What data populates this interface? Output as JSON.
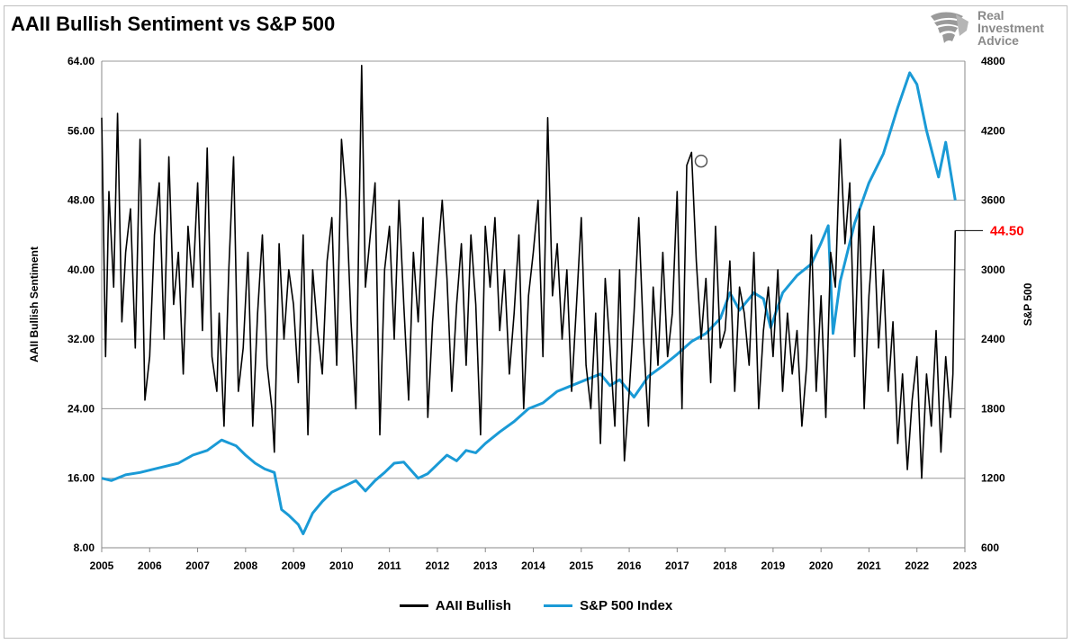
{
  "brand": {
    "lines": [
      "Real",
      "Investment",
      "Advice"
    ],
    "icon": "lion-head-logo"
  },
  "colors": {
    "bullish": "#000000",
    "sp500": "#1a9ad6",
    "callout": "#ff0000",
    "grid": "#999999"
  },
  "chart_data": {
    "type": "line",
    "title": "AAII Bullish Sentiment vs S&P 500",
    "ylabel": "AAII Bullish Sentiment",
    "y2label": "S&P 500",
    "xlim": [
      2005,
      2023
    ],
    "ylim": [
      8,
      64
    ],
    "y2lim": [
      600,
      4800
    ],
    "x_ticks": [
      "2005",
      "2006",
      "2007",
      "2008",
      "2009",
      "2010",
      "2011",
      "2012",
      "2013",
      "2014",
      "2015",
      "2016",
      "2017",
      "2018",
      "2019",
      "2020",
      "2021",
      "2022",
      "2023"
    ],
    "y_ticks": [
      "8.00",
      "16.00",
      "24.00",
      "32.00",
      "40.00",
      "48.00",
      "56.00",
      "64.00"
    ],
    "y2_ticks": [
      "600",
      "1200",
      "1800",
      "2400",
      "3000",
      "3600",
      "4200",
      "4800"
    ],
    "grid": "horizontal",
    "legend_position": "bottom-center",
    "series": [
      {
        "name": "AAII Bullish",
        "axis": "left",
        "x": [
          2005.0,
          2005.08,
          2005.15,
          2005.25,
          2005.33,
          2005.42,
          2005.5,
          2005.6,
          2005.7,
          2005.8,
          2005.9,
          2006.0,
          2006.1,
          2006.2,
          2006.3,
          2006.4,
          2006.5,
          2006.6,
          2006.7,
          2006.8,
          2006.9,
          2007.0,
          2007.1,
          2007.2,
          2007.3,
          2007.4,
          2007.45,
          2007.55,
          2007.65,
          2007.75,
          2007.85,
          2007.95,
          2008.05,
          2008.15,
          2008.25,
          2008.35,
          2008.45,
          2008.55,
          2008.6,
          2008.7,
          2008.8,
          2008.9,
          2009.0,
          2009.1,
          2009.2,
          2009.3,
          2009.4,
          2009.5,
          2009.6,
          2009.7,
          2009.8,
          2009.9,
          2010.0,
          2010.1,
          2010.2,
          2010.3,
          2010.42,
          2010.5,
          2010.6,
          2010.7,
          2010.8,
          2010.9,
          2011.0,
          2011.1,
          2011.2,
          2011.3,
          2011.4,
          2011.5,
          2011.6,
          2011.7,
          2011.8,
          2011.9,
          2012.0,
          2012.1,
          2012.2,
          2012.3,
          2012.4,
          2012.5,
          2012.6,
          2012.7,
          2012.8,
          2012.9,
          2013.0,
          2013.1,
          2013.2,
          2013.3,
          2013.4,
          2013.5,
          2013.6,
          2013.7,
          2013.8,
          2013.9,
          2014.0,
          2014.1,
          2014.2,
          2014.3,
          2014.4,
          2014.5,
          2014.6,
          2014.7,
          2014.8,
          2014.9,
          2015.0,
          2015.1,
          2015.2,
          2015.3,
          2015.4,
          2015.5,
          2015.6,
          2015.7,
          2015.8,
          2015.9,
          2016.0,
          2016.1,
          2016.2,
          2016.3,
          2016.4,
          2016.5,
          2016.6,
          2016.7,
          2016.8,
          2016.9,
          2017.0,
          2017.1,
          2017.2,
          2017.3,
          2017.4,
          2017.5,
          2017.6,
          2017.7,
          2017.8,
          2017.9,
          2018.0,
          2018.1,
          2018.2,
          2018.3,
          2018.4,
          2018.5,
          2018.6,
          2018.7,
          2018.8,
          2018.9,
          2019.0,
          2019.1,
          2019.2,
          2019.3,
          2019.4,
          2019.5,
          2019.6,
          2019.7,
          2019.8,
          2019.9,
          2020.0,
          2020.1,
          2020.2,
          2020.3,
          2020.4,
          2020.5,
          2020.6,
          2020.7,
          2020.8,
          2020.9,
          2021.0,
          2021.1,
          2021.2,
          2021.3,
          2021.4,
          2021.5,
          2021.6,
          2021.7,
          2021.8,
          2021.9,
          2022.0,
          2022.1,
          2022.2,
          2022.3,
          2022.4,
          2022.5,
          2022.6,
          2022.7,
          2022.75,
          2022.8
        ],
        "values": [
          57.5,
          30,
          49,
          38,
          58,
          34,
          42,
          47,
          31,
          55,
          25,
          30,
          44,
          50,
          32,
          53,
          36,
          42,
          28,
          45,
          38,
          50,
          33,
          54,
          30,
          26,
          35,
          22,
          40,
          53,
          26,
          31,
          42,
          22,
          35,
          44,
          29,
          24,
          19,
          43,
          32,
          40,
          36,
          27,
          44,
          21,
          40,
          33,
          28,
          41,
          46,
          29,
          55,
          48,
          34,
          24,
          63.5,
          38,
          44,
          50,
          21,
          40,
          45,
          32,
          48,
          36,
          25,
          42,
          34,
          46,
          23,
          34,
          41,
          48,
          39,
          26,
          36,
          43,
          29,
          44,
          36,
          21,
          45,
          38,
          46,
          33,
          40,
          28,
          35,
          44,
          24,
          37,
          42,
          48,
          30,
          57.5,
          37,
          43,
          32,
          40,
          26,
          36,
          46,
          29,
          24,
          35,
          20,
          39,
          31,
          22,
          40,
          18,
          26,
          35,
          46,
          32,
          22,
          38,
          29,
          42,
          30,
          35,
          49,
          24,
          52,
          53.5,
          41,
          32,
          39,
          27,
          45,
          31,
          33,
          41,
          26,
          38,
          35,
          29,
          42,
          24,
          33,
          38,
          30,
          40,
          26,
          35,
          28,
          33,
          22,
          29,
          44,
          26,
          37,
          23,
          42,
          38,
          55,
          43,
          50,
          30,
          47,
          24,
          37,
          45,
          31,
          40,
          26,
          34,
          20,
          28,
          17,
          25,
          30,
          16,
          28,
          22,
          33,
          19,
          30,
          23,
          28,
          44.5
        ]
      },
      {
        "name": "S&P 500 Index",
        "axis": "right",
        "x": [
          2005.0,
          2005.2,
          2005.5,
          2005.8,
          2006.0,
          2006.3,
          2006.6,
          2006.9,
          2007.2,
          2007.5,
          2007.8,
          2008.0,
          2008.2,
          2008.4,
          2008.6,
          2008.75,
          2008.9,
          2009.1,
          2009.2,
          2009.4,
          2009.6,
          2009.8,
          2010.0,
          2010.3,
          2010.5,
          2010.7,
          2010.9,
          2011.1,
          2011.3,
          2011.6,
          2011.8,
          2012.0,
          2012.2,
          2012.4,
          2012.6,
          2012.8,
          2013.0,
          2013.3,
          2013.6,
          2013.9,
          2014.2,
          2014.5,
          2014.8,
          2015.1,
          2015.4,
          2015.6,
          2015.8,
          2016.1,
          2016.4,
          2016.7,
          2017.0,
          2017.3,
          2017.6,
          2017.9,
          2018.1,
          2018.3,
          2018.6,
          2018.8,
          2018.95,
          2019.2,
          2019.5,
          2019.8,
          2020.0,
          2020.15,
          2020.25,
          2020.4,
          2020.7,
          2021.0,
          2021.3,
          2021.6,
          2021.85,
          2022.0,
          2022.2,
          2022.45,
          2022.6,
          2022.8
        ],
        "values": [
          1200,
          1180,
          1230,
          1250,
          1270,
          1300,
          1330,
          1400,
          1440,
          1530,
          1480,
          1400,
          1330,
          1280,
          1250,
          930,
          880,
          800,
          720,
          900,
          1000,
          1080,
          1120,
          1180,
          1090,
          1180,
          1250,
          1330,
          1340,
          1200,
          1240,
          1320,
          1400,
          1350,
          1440,
          1420,
          1500,
          1600,
          1690,
          1800,
          1850,
          1950,
          2000,
          2050,
          2100,
          2000,
          2050,
          1900,
          2080,
          2170,
          2270,
          2380,
          2450,
          2580,
          2800,
          2650,
          2800,
          2750,
          2500,
          2800,
          2950,
          3050,
          3230,
          3380,
          2450,
          2900,
          3400,
          3750,
          4000,
          4400,
          4700,
          4600,
          4200,
          3800,
          4100,
          3600
        ]
      }
    ],
    "callout": {
      "value": 44.5,
      "label": "44.50"
    },
    "marker": {
      "x": 2017.5,
      "y": 52.5
    }
  }
}
